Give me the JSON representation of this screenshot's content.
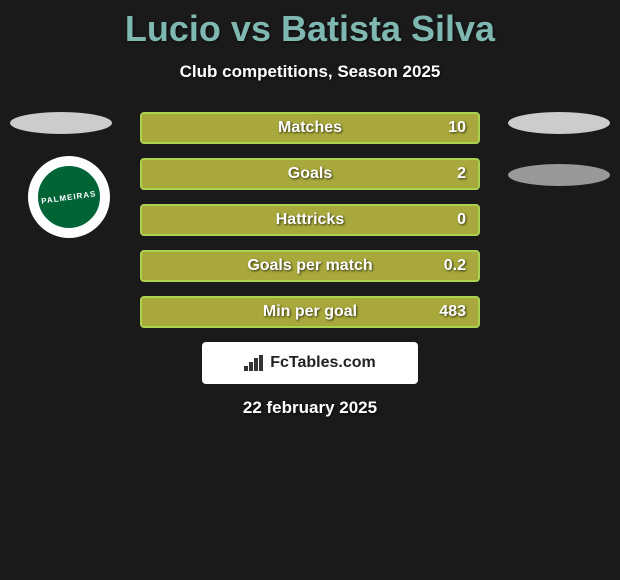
{
  "title": "Lucio vs Batista Silva",
  "subtitle": "Club competitions, Season 2025",
  "club_name": "PALMEIRAS",
  "colors": {
    "title": "#7fb8b0",
    "bar_fill": "#a8a83c",
    "bar_border": "#aad14f",
    "club_primary": "#006437",
    "background": "#1a1a1a",
    "text": "#ffffff"
  },
  "stats": [
    {
      "label": "Matches",
      "value": "10"
    },
    {
      "label": "Goals",
      "value": "2"
    },
    {
      "label": "Hattricks",
      "value": "0"
    },
    {
      "label": "Goals per match",
      "value": "0.2"
    },
    {
      "label": "Min per goal",
      "value": "483"
    }
  ],
  "footer_brand": "FcTables.com",
  "date": "22 february 2025"
}
